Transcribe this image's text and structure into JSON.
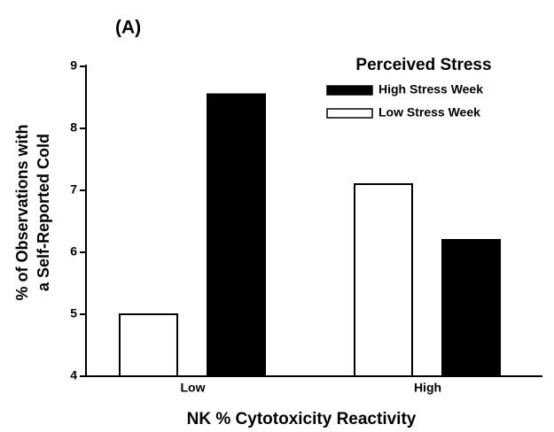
{
  "chart_data": {
    "type": "bar",
    "title": "(A)",
    "categories": [
      "Low",
      "High"
    ],
    "series": [
      {
        "name": "Low Stress Week",
        "color": "#ffffff",
        "values": [
          5.0,
          7.1
        ]
      },
      {
        "name": "High Stress Week",
        "color": "#000000",
        "values": [
          8.55,
          6.2
        ]
      }
    ],
    "legend_title": "Perceived Stress",
    "legend_position": "upper right",
    "xlabel": "NK % Cytotoxicity Reactivity",
    "ylabel": [
      "% of Observations with",
      "a Self-Reported Cold"
    ],
    "ylim": [
      4,
      9
    ],
    "yticks": [
      4,
      5,
      6,
      7,
      8,
      9
    ],
    "grid": false
  }
}
